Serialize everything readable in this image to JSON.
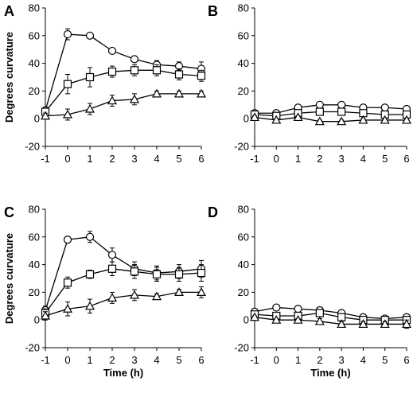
{
  "chart_data": [
    {
      "panel": "A",
      "type": "line",
      "ylabel": "Degrees curvature",
      "xlabel": "",
      "x": [
        -1,
        0,
        1,
        2,
        3,
        4,
        5,
        6
      ],
      "xticks": [
        "-1",
        "0",
        "1",
        "2",
        "3",
        "4",
        "5",
        "6"
      ],
      "yticks": [
        "-20",
        "0",
        "20",
        "40",
        "60",
        "80"
      ],
      "xlim": [
        -1,
        6
      ],
      "ylim": [
        -20,
        80
      ],
      "series": [
        {
          "marker": "circle",
          "values": [
            6,
            61,
            60,
            49,
            43,
            39,
            38,
            36
          ],
          "errors": [
            2,
            4,
            2,
            2,
            2,
            3,
            3,
            5
          ]
        },
        {
          "marker": "square",
          "values": [
            5,
            25,
            30,
            34,
            35,
            35,
            32,
            31
          ],
          "errors": [
            2,
            7,
            7,
            4,
            4,
            4,
            4,
            4
          ]
        },
        {
          "marker": "triangle",
          "values": [
            2,
            3,
            7,
            13,
            14,
            18,
            18,
            18
          ],
          "errors": [
            2,
            4,
            4,
            4,
            4,
            2,
            2,
            2
          ]
        }
      ]
    },
    {
      "panel": "B",
      "type": "line",
      "ylabel": "",
      "xlabel": "",
      "x": [
        -1,
        0,
        1,
        2,
        3,
        4,
        5,
        6
      ],
      "xticks": [
        "-1",
        "0",
        "1",
        "2",
        "3",
        "4",
        "5",
        "6"
      ],
      "yticks": [
        "-20",
        "0",
        "20",
        "40",
        "60",
        "80"
      ],
      "xlim": [
        -1,
        6
      ],
      "ylim": [
        -20,
        80
      ],
      "series": [
        {
          "marker": "circle",
          "values": [
            4,
            4,
            8,
            10,
            10,
            8,
            8,
            7
          ],
          "errors": [
            1,
            1,
            1,
            1,
            1,
            1,
            1,
            1
          ]
        },
        {
          "marker": "square",
          "values": [
            3,
            2,
            4,
            5,
            5,
            4,
            3,
            3
          ],
          "errors": [
            1,
            1,
            1,
            1,
            1,
            1,
            1,
            1
          ]
        },
        {
          "marker": "triangle",
          "values": [
            1,
            -1,
            1,
            -2,
            -2,
            -1,
            -1,
            -1
          ],
          "errors": [
            1,
            1,
            1,
            1,
            1,
            1,
            1,
            1
          ]
        }
      ]
    },
    {
      "panel": "C",
      "type": "line",
      "ylabel": "Degrees curvature",
      "xlabel": "Time (h)",
      "x": [
        -1,
        0,
        1,
        2,
        3,
        4,
        5,
        6
      ],
      "xticks": [
        "-1",
        "0",
        "1",
        "2",
        "3",
        "4",
        "5",
        "6"
      ],
      "yticks": [
        "-20",
        "0",
        "20",
        "40",
        "60",
        "80"
      ],
      "xlim": [
        -1,
        6
      ],
      "ylim": [
        -20,
        80
      ],
      "series": [
        {
          "marker": "circle",
          "values": [
            7,
            58,
            60,
            47,
            37,
            34,
            35,
            37
          ],
          "errors": [
            3,
            2,
            4,
            5,
            5,
            5,
            5,
            6
          ]
        },
        {
          "marker": "square",
          "values": [
            5,
            27,
            33,
            37,
            35,
            33,
            33,
            34
          ],
          "errors": [
            3,
            4,
            3,
            5,
            5,
            5,
            5,
            6
          ]
        },
        {
          "marker": "triangle",
          "values": [
            3,
            8,
            10,
            16,
            18,
            17,
            20,
            20
          ],
          "errors": [
            3,
            5,
            5,
            4,
            4,
            2,
            2,
            4
          ]
        }
      ]
    },
    {
      "panel": "D",
      "type": "line",
      "ylabel": "",
      "xlabel": "Time (h)",
      "x": [
        -1,
        0,
        1,
        2,
        3,
        4,
        5,
        6
      ],
      "xticks": [
        "-1",
        "0",
        "1",
        "2",
        "3",
        "4",
        "5",
        "6"
      ],
      "yticks": [
        "-20",
        "0",
        "20",
        "40",
        "60",
        "80"
      ],
      "xlim": [
        -1,
        6
      ],
      "ylim": [
        -20,
        80
      ],
      "series": [
        {
          "marker": "circle",
          "values": [
            6,
            9,
            8,
            7,
            5,
            2,
            1,
            2
          ],
          "errors": [
            1,
            2,
            2,
            2,
            2,
            2,
            2,
            2
          ]
        },
        {
          "marker": "square",
          "values": [
            4,
            3,
            3,
            5,
            2,
            0,
            0,
            0
          ],
          "errors": [
            1,
            2,
            2,
            2,
            2,
            2,
            2,
            2
          ]
        },
        {
          "marker": "triangle",
          "values": [
            2,
            0,
            0,
            -1,
            -3,
            -3,
            -3,
            -3
          ],
          "errors": [
            1,
            1,
            1,
            2,
            2,
            2,
            2,
            3
          ]
        }
      ]
    }
  ]
}
